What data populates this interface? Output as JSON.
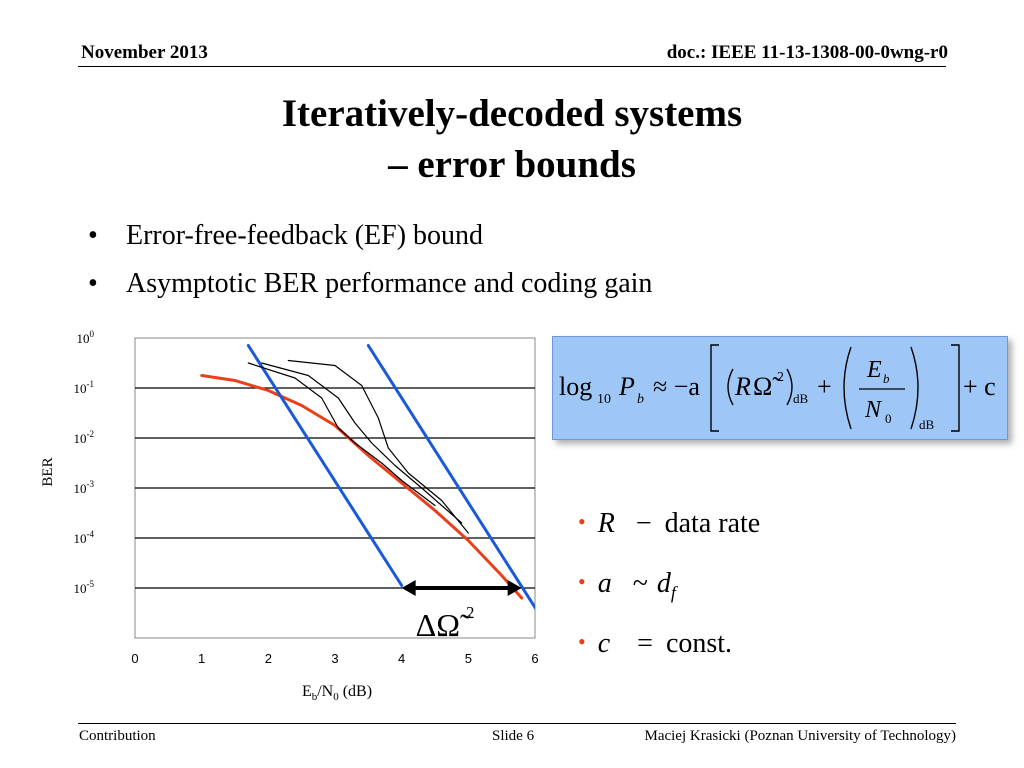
{
  "header": {
    "date": "November 2013",
    "doc": "doc.: IEEE 11-13-1308-00-0wng-r0"
  },
  "title": {
    "line1": "Iteratively-decoded systems",
    "line2": "– error bounds"
  },
  "bullets": [
    "Error-free-feedback (EF) bound",
    "Asymptotic BER performance and coding gain"
  ],
  "formula": {
    "lhs": "log",
    "lhs_sub": "10",
    "pb": "P",
    "pb_sub": "b",
    "approx": "≈ −a",
    "r": "R",
    "omega": "Ω̃",
    "sq": "2",
    "db": "dB",
    "eb": "E",
    "eb_sub": "b",
    "n0": "N",
    "n0_sub": "0",
    "plus": "+",
    "tail": "+ c"
  },
  "definitions": [
    {
      "sym": "R",
      "rel": "−",
      "text": "data rate"
    },
    {
      "sym": "a",
      "rel": "~",
      "text": "d",
      "sub": "f"
    },
    {
      "sym": "c",
      "rel": "=",
      "text": "const."
    }
  ],
  "footer": {
    "left": "Contribution",
    "mid": "Slide 6",
    "right": "Maciej Krasicki (Poznan University of Technology)"
  },
  "chart_data": {
    "type": "line",
    "ylabel": "BER",
    "xlabel": "Eb/N0 (dB)",
    "xlim": [
      0,
      6
    ],
    "ylim_log10": [
      -6,
      0
    ],
    "x_ticks": [
      "0",
      "1",
      "2",
      "3",
      "4",
      "5",
      "6"
    ],
    "y_ticks": [
      {
        "base": "10",
        "exp": "0",
        "log": 0
      },
      {
        "base": "10",
        "exp": "-1",
        "log": -1
      },
      {
        "base": "10",
        "exp": "-2",
        "log": -2
      },
      {
        "base": "10",
        "exp": "-3",
        "log": -3
      },
      {
        "base": "10",
        "exp": "-4",
        "log": -4
      },
      {
        "base": "10",
        "exp": "-5",
        "log": -5
      }
    ],
    "grid": "horizontal",
    "annotation": {
      "text": "ΔΩ̃",
      "sup": "2",
      "x_from": 4.0,
      "x_to": 5.8,
      "y_log": -5
    },
    "series": [
      {
        "color": "#e8401a",
        "points": [
          [
            1.0,
            -0.75
          ],
          [
            1.5,
            -0.85
          ],
          [
            2.0,
            -1.05
          ],
          [
            2.5,
            -1.35
          ],
          [
            3.0,
            -1.75
          ],
          [
            3.5,
            -2.35
          ],
          [
            4.0,
            -2.9
          ],
          [
            4.5,
            -3.45
          ],
          [
            5.0,
            -4.05
          ],
          [
            5.5,
            -4.75
          ],
          [
            5.8,
            -5.2
          ]
        ]
      },
      {
        "color": "#1a5ad8",
        "points": [
          [
            1.7,
            -0.15
          ],
          [
            4.0,
            -4.95
          ]
        ]
      },
      {
        "color": "#1a5ad8",
        "points": [
          [
            3.5,
            -0.15
          ],
          [
            6.1,
            -5.6
          ]
        ]
      },
      {
        "color": "#000000",
        "points": [
          [
            1.7,
            -0.5
          ],
          [
            2.4,
            -0.8
          ],
          [
            2.8,
            -1.2
          ],
          [
            3.05,
            -1.8
          ],
          [
            3.3,
            -2.1
          ],
          [
            3.7,
            -2.5
          ],
          [
            4.0,
            -2.85
          ],
          [
            4.5,
            -3.35
          ]
        ]
      },
      {
        "color": "#000000",
        "points": [
          [
            1.9,
            -0.5
          ],
          [
            2.6,
            -0.75
          ],
          [
            3.05,
            -1.2
          ],
          [
            3.3,
            -1.7
          ],
          [
            3.55,
            -2.1
          ],
          [
            3.9,
            -2.55
          ],
          [
            4.3,
            -3.0
          ],
          [
            4.9,
            -3.7
          ]
        ]
      },
      {
        "color": "#000000",
        "points": [
          [
            2.3,
            -0.45
          ],
          [
            3.0,
            -0.55
          ],
          [
            3.4,
            -0.95
          ],
          [
            3.65,
            -1.6
          ],
          [
            3.8,
            -2.2
          ],
          [
            4.1,
            -2.7
          ],
          [
            4.6,
            -3.25
          ],
          [
            5.0,
            -3.9
          ]
        ]
      }
    ]
  }
}
